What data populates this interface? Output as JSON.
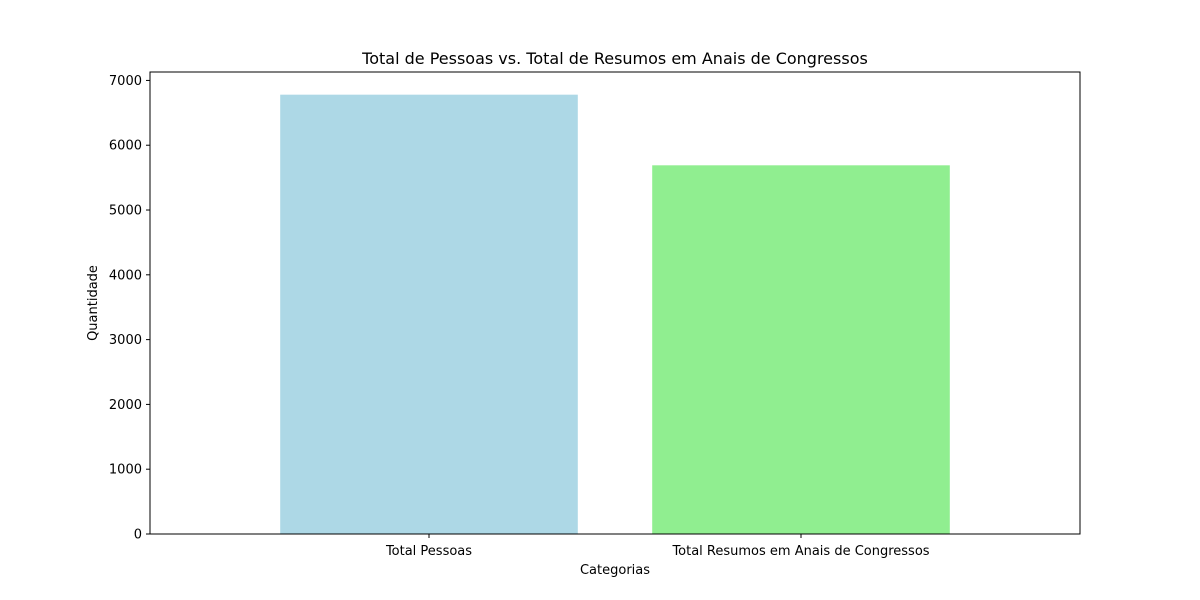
{
  "chart_data": {
    "type": "bar",
    "title": "Total de Pessoas vs. Total de Resumos em Anais de Congressos",
    "xlabel": "Categorias",
    "ylabel": "Quantidade",
    "categories": [
      "Total Pessoas",
      "Total Resumos em Anais de Congressos"
    ],
    "values": [
      6780,
      5690
    ],
    "colors": [
      "#add8e6",
      "#90ee90"
    ],
    "ylim": [
      0,
      7130
    ],
    "yticks": [
      0,
      1000,
      2000,
      3000,
      4000,
      5000,
      6000,
      7000
    ],
    "grid": false,
    "legend": "none"
  }
}
